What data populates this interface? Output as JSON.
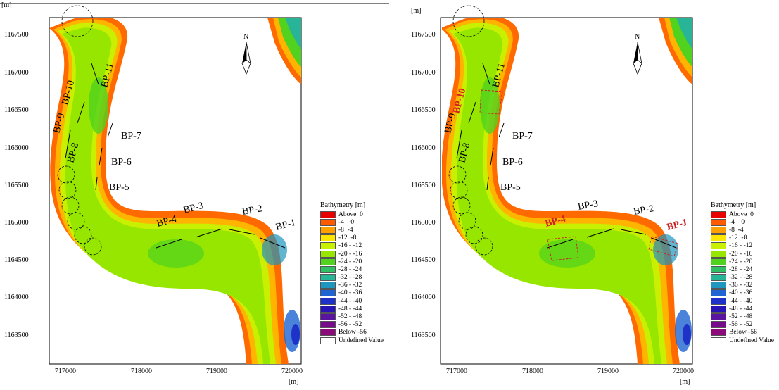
{
  "axes": {
    "unit_x": "[m]",
    "unit_y": "[m]",
    "y_ticks": [
      "1167500",
      "1167000",
      "1166500",
      "1166000",
      "1165500",
      "1165000",
      "1164500",
      "1164000",
      "1163500"
    ],
    "x_ticks": [
      "717000",
      "718000",
      "719000",
      "720000"
    ]
  },
  "north_label": "N",
  "legend": {
    "title": "Bathymetry [m]",
    "items": [
      {
        "label": "Above  0",
        "color": "#e60000"
      },
      {
        "label": "-4    0",
        "color": "#ff5a00"
      },
      {
        "label": "-8  -4",
        "color": "#ffa000"
      },
      {
        "label": "-12  -8",
        "color": "#ffe600"
      },
      {
        "label": "-16 - -12",
        "color": "#c8f000"
      },
      {
        "label": "-20 - -16",
        "color": "#96e600"
      },
      {
        "label": "-24 - -20",
        "color": "#50d21e"
      },
      {
        "label": "-28 - -24",
        "color": "#32be64"
      },
      {
        "label": "-32 - -28",
        "color": "#28b496"
      },
      {
        "label": "-36 - -32",
        "color": "#1e96be"
      },
      {
        "label": "-40 - -36",
        "color": "#1e64d2"
      },
      {
        "label": "-44 - -40",
        "color": "#1e32c8"
      },
      {
        "label": "-48 - -44",
        "color": "#2814b4"
      },
      {
        "label": "-52 - -48",
        "color": "#5a14a0"
      },
      {
        "label": "-56 - -52",
        "color": "#780a8c"
      },
      {
        "label": "Below -56",
        "color": "#8c0a7a"
      },
      {
        "label": "Undefined Value",
        "color": "#ffffff"
      }
    ]
  },
  "panels": [
    {
      "labels": {
        "bp1": "BP-1",
        "bp2": "BP-2",
        "bp3": "BP-3",
        "bp4": "BP-4",
        "bp5": "BP-5",
        "bp6": "BP-6",
        "bp7": "BP-7",
        "bp8": "BP-8",
        "bp9": "BP-9",
        "bp10": "BP-10",
        "bp11": "BP-11"
      },
      "highlighted": []
    },
    {
      "labels": {
        "bp1": "BP-1",
        "bp2": "BP-2",
        "bp3": "BP-3",
        "bp4": "BP-4",
        "bp5": "BP-5",
        "bp6": "BP-6",
        "bp7": "BP-7",
        "bp8": "BP-8",
        "bp9": "BP-9",
        "bp10": "BP-10",
        "bp11": "BP-11"
      },
      "highlighted": [
        "bp1",
        "bp4",
        "bp10"
      ]
    }
  ],
  "colors": {
    "highlight": "#cc2222",
    "normal": "#000000"
  }
}
